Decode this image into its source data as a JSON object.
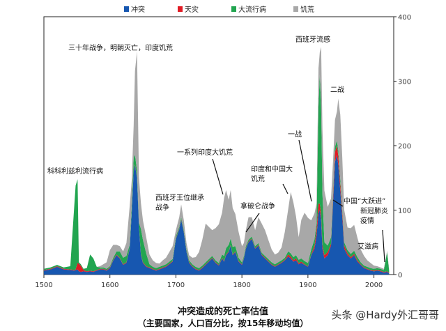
{
  "chart_data": {
    "type": "area",
    "stacked": true,
    "xlim": [
      1500,
      2030
    ],
    "ylim": [
      0,
      400
    ],
    "x_ticks": [
      1500,
      1600,
      1700,
      1800,
      1900,
      2000
    ],
    "y_ticks": [
      0,
      100,
      200,
      300,
      400
    ],
    "y_axis_position": "right",
    "legend": [
      {
        "name": "冲突",
        "color": "#1757b0"
      },
      {
        "name": "天灾",
        "color": "#e01b24"
      },
      {
        "name": "大流行病",
        "color": "#22a550"
      },
      {
        "name": "饥荒",
        "color": "#a8a8a8"
      }
    ],
    "x": [
      1500,
      1510,
      1520,
      1530,
      1540,
      1546,
      1548,
      1551,
      1553,
      1556,
      1560,
      1565,
      1570,
      1575,
      1580,
      1585,
      1590,
      1595,
      1600,
      1605,
      1610,
      1615,
      1620,
      1625,
      1630,
      1633,
      1636,
      1638,
      1641,
      1644,
      1647,
      1650,
      1655,
      1660,
      1665,
      1670,
      1675,
      1680,
      1685,
      1690,
      1695,
      1700,
      1705,
      1708,
      1712,
      1716,
      1720,
      1725,
      1730,
      1735,
      1740,
      1745,
      1750,
      1755,
      1760,
      1765,
      1770,
      1773,
      1776,
      1780,
      1783,
      1786,
      1790,
      1795,
      1800,
      1803,
      1806,
      1810,
      1815,
      1820,
      1825,
      1830,
      1835,
      1840,
      1845,
      1850,
      1855,
      1860,
      1865,
      1870,
      1874,
      1878,
      1882,
      1886,
      1890,
      1895,
      1900,
      1905,
      1910,
      1913,
      1916,
      1918,
      1920,
      1922,
      1925,
      1930,
      1935,
      1938,
      1941,
      1944,
      1946,
      1949,
      1952,
      1955,
      1960,
      1965,
      1970,
      1975,
      1980,
      1985,
      1990,
      1995,
      2000,
      2005,
      2010,
      2015,
      2020,
      2023
    ],
    "series": [
      {
        "name": "冲突",
        "values": [
          6,
          8,
          12,
          8,
          7,
          6,
          7,
          8,
          5,
          4,
          5,
          4,
          5,
          4,
          6,
          8,
          8,
          6,
          10,
          22,
          30,
          25,
          15,
          18,
          40,
          95,
          160,
          170,
          150,
          75,
          30,
          18,
          12,
          10,
          8,
          6,
          8,
          10,
          12,
          16,
          20,
          55,
          70,
          85,
          65,
          35,
          18,
          12,
          8,
          6,
          10,
          15,
          20,
          25,
          18,
          14,
          25,
          20,
          30,
          35,
          45,
          30,
          35,
          20,
          15,
          25,
          40,
          50,
          55,
          40,
          45,
          30,
          25,
          20,
          15,
          12,
          15,
          18,
          22,
          28,
          25,
          20,
          22,
          16,
          18,
          15,
          12,
          30,
          40,
          60,
          95,
          100,
          85,
          40,
          25,
          30,
          45,
          110,
          175,
          185,
          170,
          130,
          90,
          40,
          30,
          25,
          30,
          20,
          15,
          10,
          8,
          6,
          5,
          6,
          5,
          3,
          4,
          2
        ]
      },
      {
        "name": "天灾",
        "values": [
          1,
          1,
          1,
          1,
          1,
          1,
          1,
          10,
          12,
          10,
          2,
          1,
          1,
          1,
          1,
          1,
          1,
          1,
          1,
          1,
          1,
          1,
          1,
          1,
          1,
          1,
          1,
          1,
          1,
          1,
          1,
          1,
          1,
          1,
          1,
          1,
          1,
          1,
          1,
          1,
          1,
          1,
          1,
          1,
          1,
          1,
          1,
          1,
          1,
          1,
          1,
          1,
          1,
          1,
          1,
          1,
          1,
          1,
          1,
          1,
          1,
          1,
          1,
          1,
          1,
          1,
          1,
          1,
          1,
          1,
          1,
          1,
          1,
          1,
          1,
          1,
          1,
          1,
          1,
          3,
          3,
          2,
          3,
          2,
          2,
          1,
          1,
          1,
          5,
          10,
          15,
          10,
          8,
          6,
          5,
          5,
          3,
          8,
          15,
          15,
          15,
          10,
          8,
          5,
          3,
          2,
          2,
          2,
          1,
          1,
          1,
          1,
          1,
          1,
          1,
          1,
          1,
          1
        ]
      },
      {
        "name": "大流行病",
        "values": [
          2,
          2,
          2,
          2,
          5,
          100,
          130,
          130,
          2,
          2,
          2,
          5,
          25,
          20,
          5,
          2,
          2,
          2,
          2,
          3,
          5,
          10,
          10,
          10,
          5,
          10,
          20,
          15,
          10,
          5,
          40,
          35,
          20,
          5,
          3,
          3,
          3,
          3,
          3,
          3,
          3,
          3,
          3,
          3,
          3,
          3,
          3,
          3,
          3,
          3,
          3,
          3,
          3,
          3,
          3,
          3,
          5,
          8,
          10,
          10,
          10,
          12,
          8,
          5,
          3,
          3,
          3,
          3,
          3,
          3,
          3,
          3,
          3,
          3,
          3,
          3,
          3,
          3,
          3,
          5,
          5,
          5,
          5,
          5,
          5,
          5,
          5,
          8,
          10,
          10,
          150,
          200,
          170,
          80,
          20,
          10,
          10,
          8,
          8,
          8,
          8,
          8,
          5,
          5,
          5,
          5,
          5,
          5,
          3,
          3,
          3,
          3,
          3,
          3,
          3,
          3,
          30,
          3
        ]
      },
      {
        "name": "饥荒",
        "values": [
          0,
          0,
          0,
          0,
          0,
          0,
          0,
          0,
          0,
          0,
          0,
          0,
          0,
          0,
          0,
          2,
          5,
          10,
          25,
          20,
          10,
          8,
          10,
          20,
          60,
          40,
          50,
          130,
          185,
          70,
          40,
          30,
          25,
          15,
          10,
          8,
          5,
          8,
          10,
          15,
          20,
          10,
          15,
          20,
          15,
          10,
          8,
          10,
          15,
          25,
          40,
          60,
          50,
          40,
          50,
          60,
          65,
          90,
          90,
          70,
          75,
          60,
          50,
          40,
          25,
          20,
          25,
          35,
          30,
          25,
          40,
          45,
          40,
          30,
          20,
          15,
          15,
          20,
          40,
          65,
          95,
          85,
          60,
          35,
          60,
          75,
          70,
          45,
          40,
          30,
          60,
          35,
          90,
          100,
          80,
          60,
          60,
          50,
          42,
          45,
          80,
          100,
          80,
          50,
          35,
          40,
          40,
          30,
          20,
          15,
          10,
          8,
          5,
          3,
          2,
          2,
          2,
          2
        ]
      }
    ],
    "annotations": [
      "三十年战争，明朝灭亡，印度饥荒",
      "科科利兹利流行病",
      "西班牙王位继承战争",
      "一系列印度大饥荒",
      "拿破仑战争",
      "印度和中国大饥荒",
      "一战",
      "西班牙流感",
      "二战",
      "中国“大跃进”",
      "新冠肺炎疫情",
      "艾滋病"
    ],
    "title": "冲突造成的死亡率估值",
    "subtitle": "（主要国家，人口百分比，按15年移动均值）"
  },
  "watermark": "头条 @Hardy外汇哥哥"
}
